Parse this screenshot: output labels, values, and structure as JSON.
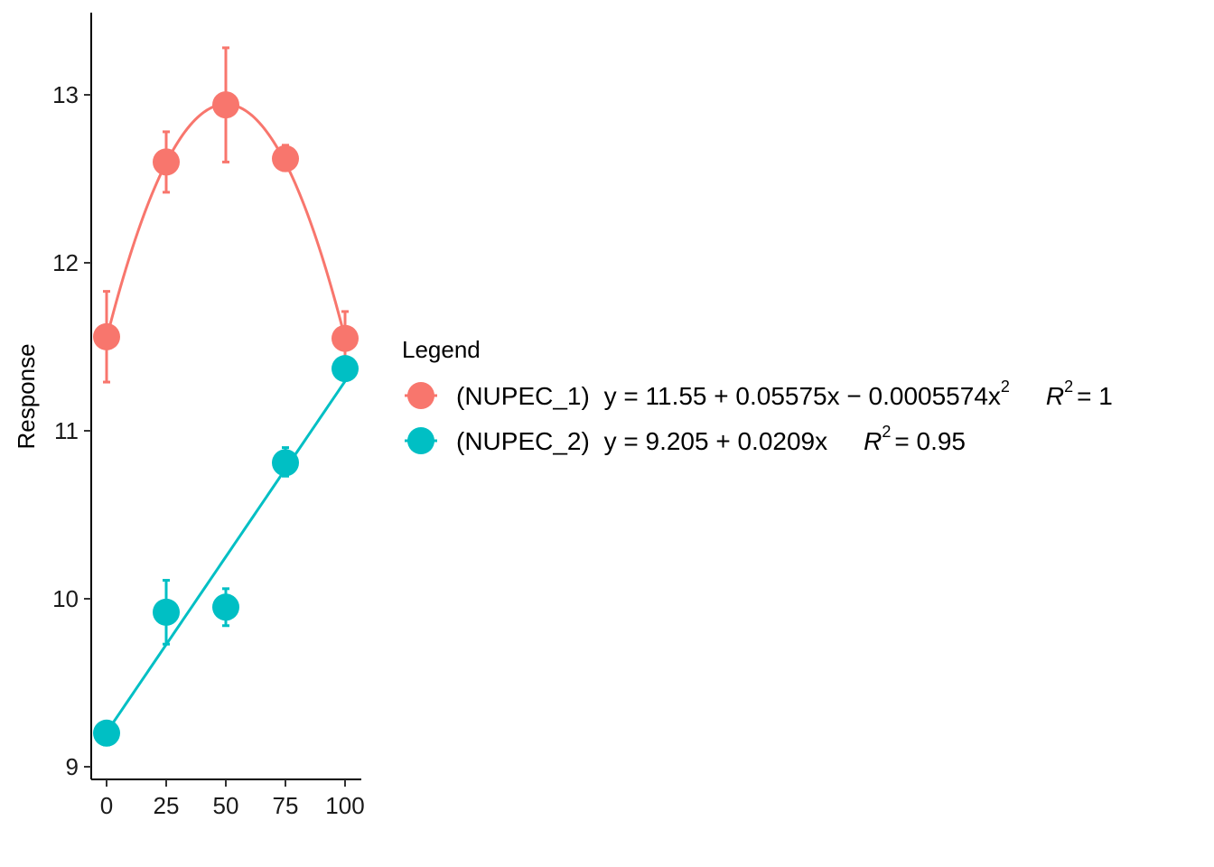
{
  "chart_data": {
    "type": "scatter",
    "title": "",
    "xlabel": "",
    "ylabel": "Response",
    "xlim": [
      -5,
      105
    ],
    "ylim": [
      8.93,
      13.48
    ],
    "x_ticks": [
      0,
      25,
      50,
      75,
      100
    ],
    "y_ticks": [
      9,
      10,
      11,
      12,
      13
    ],
    "x_tick_labels": [
      "0",
      "25",
      "50",
      "75",
      "100"
    ],
    "y_tick_labels": [
      "9",
      "10",
      "11",
      "12",
      "13"
    ],
    "grid": false,
    "legend": {
      "title": "Legend",
      "position": "right",
      "entries": [
        {
          "label": "(NUPEC_1)",
          "equation": "y = 11.55 + 0.05575x − 0.0005574x",
          "equation_sup": "2",
          "r2_label": "R",
          "r2_sup": "2",
          "r2_value": "= 1"
        },
        {
          "label": "(NUPEC_2)",
          "equation": "y = 9.205 + 0.0209x",
          "equation_sup": "",
          "r2_label": "R",
          "r2_sup": "2",
          "r2_value": "= 0.95"
        }
      ]
    },
    "series": [
      {
        "name": "(NUPEC_1)",
        "color": "#F8766D",
        "fit": "quadratic",
        "coefficients": [
          11.55,
          0.05575,
          -0.0005574
        ],
        "points": [
          {
            "x": 0,
            "y": 11.56,
            "ymin": 11.29,
            "ymax": 11.83
          },
          {
            "x": 25,
            "y": 12.6,
            "ymin": 12.42,
            "ymax": 12.78
          },
          {
            "x": 50,
            "y": 12.94,
            "ymin": 12.6,
            "ymax": 13.28
          },
          {
            "x": 75,
            "y": 12.62,
            "ymin": 12.55,
            "ymax": 12.7
          },
          {
            "x": 100,
            "y": 11.55,
            "ymin": 11.4,
            "ymax": 11.71
          }
        ]
      },
      {
        "name": "(NUPEC_2)",
        "color": "#00BFC4",
        "fit": "linear",
        "coefficients": [
          9.205,
          0.0209
        ],
        "points": [
          {
            "x": 0,
            "y": 9.2,
            "ymin": 9.13,
            "ymax": 9.26
          },
          {
            "x": 25,
            "y": 9.92,
            "ymin": 9.73,
            "ymax": 10.11
          },
          {
            "x": 50,
            "y": 9.95,
            "ymin": 9.84,
            "ymax": 10.06
          },
          {
            "x": 75,
            "y": 10.81,
            "ymin": 10.73,
            "ymax": 10.9
          },
          {
            "x": 100,
            "y": 11.37,
            "ymin": 11.31,
            "ymax": 11.43
          }
        ]
      }
    ]
  }
}
